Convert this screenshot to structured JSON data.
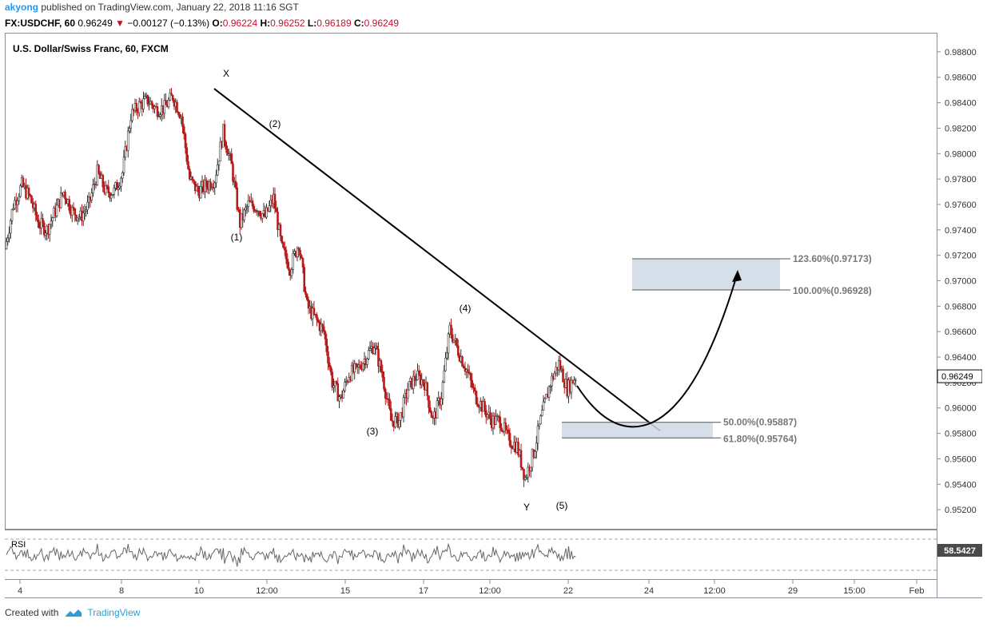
{
  "header": {
    "user": "akyong",
    "publish_text": "published on TradingView.com, January 22, 2018 11:16 SGT",
    "symbol_line": "FX:USDCHF, 60",
    "last": "0.96249",
    "change": "−0.00127 (−0.13%)",
    "o_label": "O:",
    "o_val": "0.96224",
    "h_label": "H:",
    "h_val": "0.96252",
    "l_label": "L:",
    "l_val": "0.96189",
    "c_label": "C:",
    "c_val": "0.96249"
  },
  "chart_data": {
    "type": "candlestick",
    "title": "U.S. Dollar/Swiss Franc, 60, FXCM",
    "x_ticks": [
      "4",
      "8",
      "10",
      "12:00",
      "15",
      "17",
      "12:00",
      "22",
      "24",
      "12:00",
      "29",
      "15:00",
      "Feb"
    ],
    "y_ticks": [
      "0.98800",
      "0.98600",
      "0.98400",
      "0.98200",
      "0.98000",
      "0.97800",
      "0.97600",
      "0.97400",
      "0.97200",
      "0.97000",
      "0.96800",
      "0.96600",
      "0.96400",
      "0.96200",
      "0.96000",
      "0.95800",
      "0.95600",
      "0.95400",
      "0.95200"
    ],
    "ylim": [
      0.9505,
      0.9895
    ],
    "last_price": "0.96249",
    "price_path": [
      {
        "x": "Jan 4",
        "y": 0.9725
      },
      {
        "y": 0.976
      },
      {
        "y": 0.9775
      },
      {
        "y": 0.9765
      },
      {
        "y": 0.9745
      },
      {
        "y": 0.974
      },
      {
        "y": 0.9755
      },
      {
        "y": 0.977
      },
      {
        "y": 0.9755
      },
      {
        "y": 0.975
      },
      {
        "y": 0.976
      },
      {
        "y": 0.9785
      },
      {
        "y": 0.977
      },
      {
        "y": 0.977
      },
      {
        "y": 0.9785
      },
      {
        "y": 0.983
      },
      {
        "y": 0.9838
      },
      {
        "y": 0.9842
      },
      {
        "y": 0.9835
      },
      {
        "y": 0.9836
      },
      {
        "y": 0.9845
      },
      {
        "y": 0.983
      },
      {
        "y": 0.978
      },
      {
        "y": 0.977
      },
      {
        "y": 0.9775
      },
      {
        "y": 0.978
      },
      {
        "y": 0.9817
      },
      {
        "y": 0.979
      },
      {
        "y": 0.9745
      },
      {
        "y": 0.976
      },
      {
        "y": 0.9758
      },
      {
        "y": 0.975
      },
      {
        "y": 0.9765
      },
      {
        "y": 0.9725
      },
      {
        "y": 0.971
      },
      {
        "y": 0.973
      },
      {
        "y": 0.968
      },
      {
        "y": 0.967
      },
      {
        "y": 0.966
      },
      {
        "y": 0.962
      },
      {
        "y": 0.9607
      },
      {
        "y": 0.9627
      },
      {
        "y": 0.963
      },
      {
        "y": 0.964
      },
      {
        "y": 0.965
      },
      {
        "y": 0.9625
      },
      {
        "y": 0.959
      },
      {
        "y": 0.959
      },
      {
        "y": 0.9615
      },
      {
        "y": 0.9625
      },
      {
        "y": 0.962
      },
      {
        "y": 0.959
      },
      {
        "y": 0.961
      },
      {
        "y": 0.9662
      },
      {
        "y": 0.9645
      },
      {
        "y": 0.963
      },
      {
        "y": 0.961
      },
      {
        "y": 0.96
      },
      {
        "y": 0.959
      },
      {
        "y": 0.959
      },
      {
        "y": 0.9575
      },
      {
        "y": 0.957
      },
      {
        "y": 0.9545
      },
      {
        "y": 0.9565
      },
      {
        "y": 0.9595
      },
      {
        "y": 0.962
      },
      {
        "y": 0.9635
      },
      {
        "y": 0.9615
      },
      {
        "y": 0.9625
      }
    ],
    "trendline": {
      "from": {
        "x": "Jan 10",
        "y": 0.9851
      },
      "to": {
        "x": "Jan 24",
        "y": 0.9582
      }
    },
    "fib_zones": [
      {
        "top_label": "123.60%(0.97173)",
        "bottom_label": "100.00%(0.96928)",
        "top": 0.97173,
        "bottom": 0.96928
      },
      {
        "top_label": "50.00%(0.95887)",
        "bottom_label": "61.80%(0.95764)",
        "top": 0.95887,
        "bottom": 0.95764
      }
    ],
    "wave_labels": [
      "X",
      "(2)",
      "(1)",
      "(3)",
      "(4)",
      "Y",
      "(5)"
    ],
    "rsi": {
      "label": "RSI",
      "value": "58.5427",
      "levels": [
        70,
        30
      ]
    }
  },
  "footer": {
    "created_with": "Created with",
    "brand": "TradingView"
  }
}
